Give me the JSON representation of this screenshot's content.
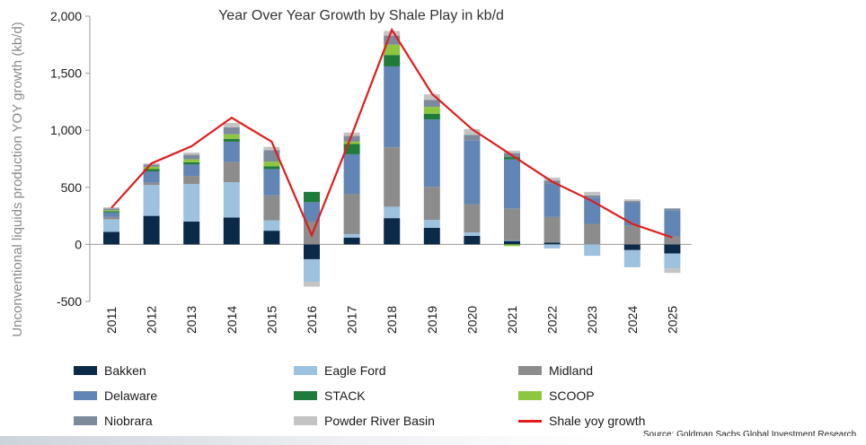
{
  "chart_data": {
    "type": "bar",
    "subtype": "stacked-bar-with-line",
    "title": "Year Over Year Growth by Shale Play in kb/d",
    "ylabel": "Unconventional liquids production YOY growth (kb/d)",
    "xlabel": "",
    "ylim": [
      -500,
      2000
    ],
    "yticks": [
      -500,
      0,
      500,
      1000,
      1500,
      2000
    ],
    "ytick_labels": [
      "-500",
      "0",
      "500",
      "1,000",
      "1,500",
      "2,000"
    ],
    "categories": [
      "2011",
      "2012",
      "2013",
      "2014",
      "2015",
      "2016",
      "2017",
      "2018",
      "2019",
      "2020",
      "2021",
      "2022",
      "2023",
      "2024",
      "2025"
    ],
    "grid": false,
    "legend_position": "bottom",
    "series": [
      {
        "name": "Bakken",
        "color": "#0b2a4a",
        "values": [
          110,
          250,
          200,
          235,
          120,
          -130,
          60,
          230,
          145,
          75,
          30,
          15,
          0,
          -50,
          -80
        ]
      },
      {
        "name": "Eagle Ford",
        "color": "#9cc2e0",
        "values": [
          110,
          270,
          330,
          310,
          90,
          -200,
          30,
          100,
          70,
          30,
          5,
          -35,
          -100,
          -150,
          -130
        ]
      },
      {
        "name": "Midland",
        "color": "#8c8c8c",
        "values": [
          20,
          20,
          70,
          175,
          220,
          200,
          350,
          520,
          290,
          245,
          280,
          225,
          180,
          165,
          70
        ]
      },
      {
        "name": "Delaware",
        "color": "#6185b5",
        "values": [
          40,
          100,
          100,
          180,
          230,
          170,
          350,
          710,
          590,
          560,
          430,
          295,
          230,
          200,
          230
        ]
      },
      {
        "name": "STACK",
        "color": "#1e7b3a",
        "values": [
          10,
          20,
          20,
          25,
          25,
          90,
          90,
          100,
          50,
          0,
          20,
          0,
          0,
          0,
          0
        ]
      },
      {
        "name": "SCOOP",
        "color": "#8dc63f",
        "values": [
          10,
          20,
          25,
          40,
          40,
          0,
          20,
          90,
          60,
          0,
          -15,
          0,
          0,
          0,
          0
        ]
      },
      {
        "name": "Niobrara",
        "color": "#7c8a9c",
        "values": [
          15,
          20,
          40,
          60,
          100,
          0,
          50,
          80,
          60,
          50,
          35,
          25,
          20,
          15,
          15
        ]
      },
      {
        "name": "Powder River Basin",
        "color": "#c4c4c4",
        "values": [
          10,
          10,
          20,
          40,
          30,
          -40,
          30,
          40,
          50,
          50,
          20,
          25,
          30,
          15,
          -40
        ]
      }
    ],
    "line": {
      "name": "Shale yoy growth",
      "color": "#e21c1c",
      "values": [
        320,
        710,
        860,
        1110,
        900,
        80,
        960,
        1880,
        1320,
        1010,
        780,
        550,
        380,
        180,
        60
      ]
    }
  },
  "source": "Source: Goldman Sachs Global Investment Research."
}
